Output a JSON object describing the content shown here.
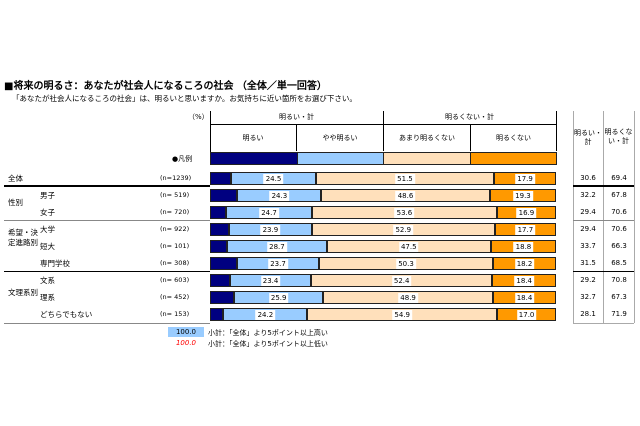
{
  "title": "■将来の明るさ：あなたが社会人になるころの社会 （全体／単一回答）",
  "question": "「あなたが社会人になるころの社会」は、明るいと思いますか。お気持ちに近い箇所をお選び下さい。",
  "unit": "（%）",
  "legend_label": "●凡例",
  "header": {
    "group_bright": "明るい・計",
    "group_not_bright": "明るくない・計",
    "sum_bright": "明るい・計",
    "sum_not_bright": "明るくない・計"
  },
  "groups": [
    {
      "label": "性別"
    },
    {
      "label": "希望・決定進路別"
    },
    {
      "label": "文理系別"
    }
  ],
  "chart_data": {
    "type": "bar",
    "orientation": "horizontal",
    "stacked": true,
    "xlim": [
      0,
      100
    ],
    "series": [
      {
        "name": "明るい",
        "color": "#000080"
      },
      {
        "name": "やや明るい",
        "color": "#99ccff"
      },
      {
        "name": "あまり明るくない",
        "color": "#ffe0bb"
      },
      {
        "name": "明るくない",
        "color": "#ff9900"
      }
    ],
    "rows": [
      {
        "group": "",
        "label": "全体",
        "n": "(n=1239)",
        "values": [
          6.1,
          24.5,
          51.5,
          17.9
        ],
        "sum_bright": "30.6",
        "sum_not": "69.4"
      },
      {
        "group": "性別",
        "label": "男子",
        "n": "(n=  519)",
        "values": [
          7.9,
          24.3,
          48.6,
          19.3
        ],
        "sum_bright": "32.2",
        "sum_not": "67.8"
      },
      {
        "group": "性別",
        "label": "女子",
        "n": "(n=  720)",
        "values": [
          4.7,
          24.7,
          53.6,
          16.9
        ],
        "sum_bright": "29.4",
        "sum_not": "70.6"
      },
      {
        "group": "希望・決定進路別",
        "label": "大学",
        "n": "(n=  922)",
        "values": [
          5.5,
          23.9,
          52.9,
          17.7
        ],
        "sum_bright": "29.4",
        "sum_not": "70.6"
      },
      {
        "group": "希望・決定進路別",
        "label": "短大",
        "n": "(n=  101)",
        "values": [
          5.0,
          28.7,
          47.5,
          18.8
        ],
        "sum_bright": "33.7",
        "sum_not": "66.3"
      },
      {
        "group": "希望・決定進路別",
        "label": "専門学校",
        "n": "(n=  308)",
        "values": [
          7.8,
          23.7,
          50.3,
          18.2
        ],
        "sum_bright": "31.5",
        "sum_not": "68.5"
      },
      {
        "group": "文理系別",
        "label": "文系",
        "n": "(n=  603)",
        "values": [
          5.8,
          23.4,
          52.4,
          18.4
        ],
        "sum_bright": "29.2",
        "sum_not": "70.8"
      },
      {
        "group": "文理系別",
        "label": "理系",
        "n": "(n=  452)",
        "values": [
          6.9,
          25.9,
          48.9,
          18.4
        ],
        "sum_bright": "32.7",
        "sum_not": "67.3"
      },
      {
        "group": "文理系別",
        "label": "どちらでもない",
        "n": "(n=  153)",
        "values": [
          3.9,
          24.2,
          54.9,
          17.0
        ],
        "sum_bright": "28.1",
        "sum_not": "71.9"
      }
    ]
  },
  "notes": [
    {
      "sample": "100.0",
      "text": "小計：「全体」より5ポイント以上高い",
      "color": "#99ccff"
    },
    {
      "sample": "100.0",
      "text": "小計：「全体」より5ポイント以上低い",
      "color": "#ff0000"
    }
  ]
}
